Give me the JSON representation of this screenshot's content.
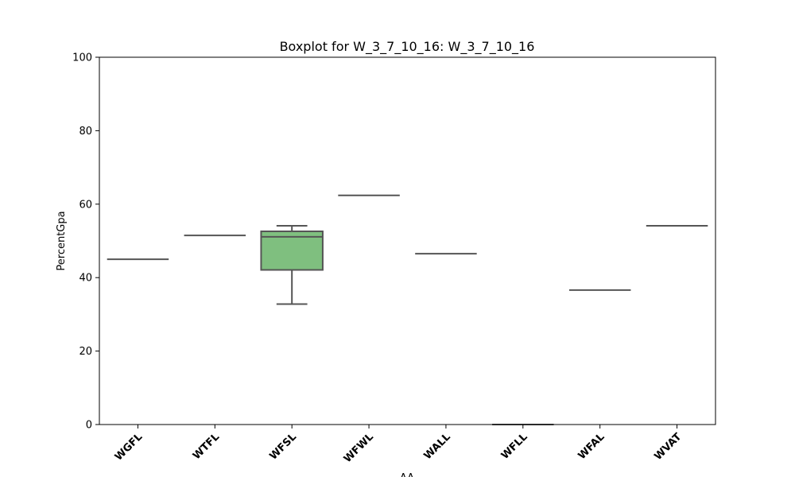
{
  "chart_data": {
    "type": "box",
    "title": "Boxplot for W_3_7_10_16: W_3_7_10_16",
    "xlabel": "AA",
    "ylabel": "PercentGpa",
    "ylim": [
      0,
      100
    ],
    "yticks": [
      0,
      20,
      40,
      60,
      80,
      100
    ],
    "categories": [
      "WGFL",
      "WTFL",
      "WFSL",
      "WFWL",
      "WALL",
      "WFLL",
      "WFAL",
      "WVAT"
    ],
    "boxes": [
      {
        "category": "WGFL",
        "min": 45,
        "q1": 45,
        "median": 45,
        "q3": 45,
        "max": 45
      },
      {
        "category": "WTFL",
        "min": 51.5,
        "q1": 51.5,
        "median": 51.5,
        "q3": 51.5,
        "max": 51.5
      },
      {
        "category": "WFSL",
        "min": 32.8,
        "q1": 42.1,
        "median": 51.1,
        "q3": 52.6,
        "max": 54.1
      },
      {
        "category": "WFWL",
        "min": 62.4,
        "q1": 62.4,
        "median": 62.4,
        "q3": 62.4,
        "max": 62.4
      },
      {
        "category": "WALL",
        "min": 46.5,
        "q1": 46.5,
        "median": 46.5,
        "q3": 46.5,
        "max": 46.5
      },
      {
        "category": "WFLL",
        "min": 0,
        "q1": 0,
        "median": 0,
        "q3": 0,
        "max": 0
      },
      {
        "category": "WFAL",
        "min": 36.6,
        "q1": 36.6,
        "median": 36.6,
        "q3": 36.6,
        "max": 36.6
      },
      {
        "category": "WVAT",
        "min": 54.1,
        "q1": 54.1,
        "median": 54.1,
        "q3": 54.1,
        "max": 54.1
      }
    ],
    "box_color": "#7fbf7f",
    "line_color": "#555555",
    "grid": false
  }
}
